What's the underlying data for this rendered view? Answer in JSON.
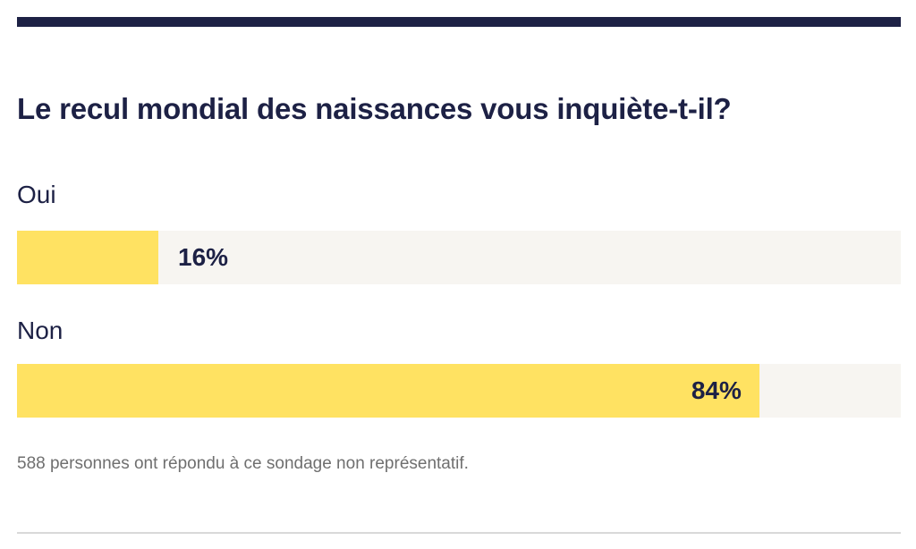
{
  "poll": {
    "question": "Le recul mondial des naissances vous inquiète-t-il?",
    "options": [
      {
        "label": "Oui",
        "percent_label": "16%",
        "share": 0.16
      },
      {
        "label": "Non",
        "percent_label": "84%",
        "share": 0.84
      }
    ],
    "footnote": "588 personnes ont répondu à ce sondage non représentatif."
  },
  "colors": {
    "accent_dark": "#1d2145",
    "bar_fill": "#ffe262",
    "bar_track": "#f7f5f1",
    "footnote_text": "#6f6f6f",
    "divider": "#d9d9d9"
  }
}
